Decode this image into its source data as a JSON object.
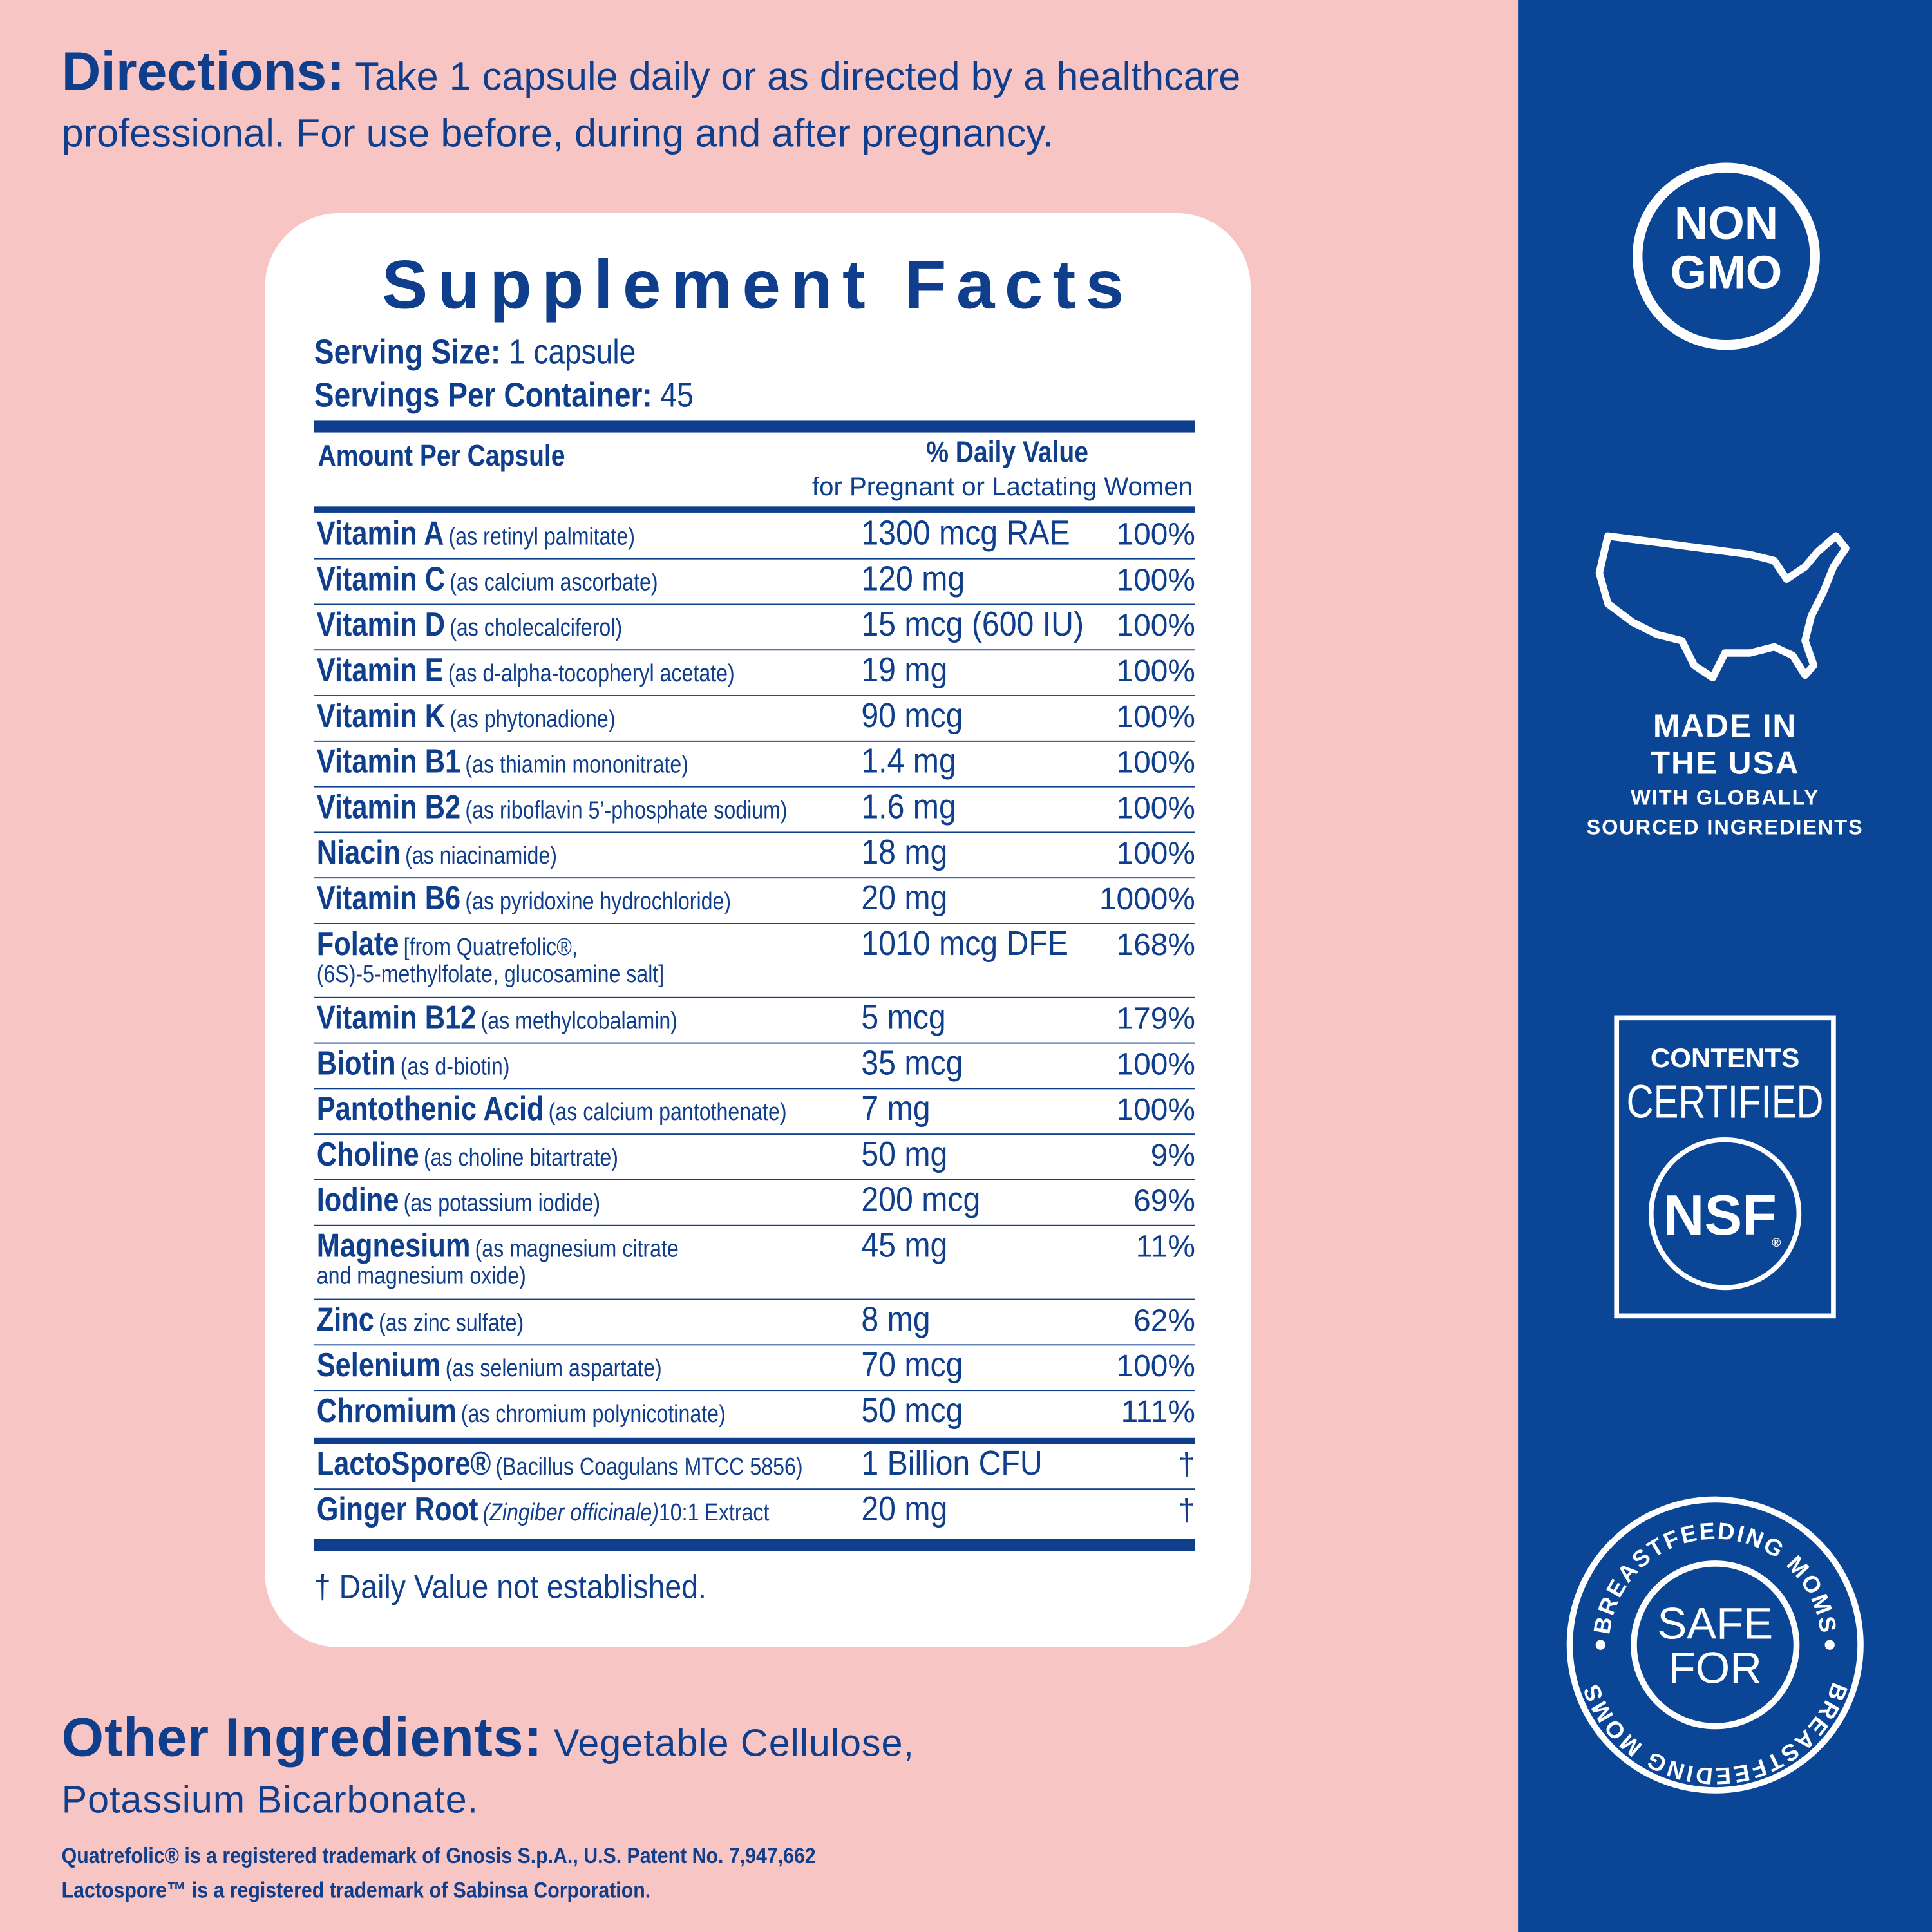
{
  "directions": {
    "label": "Directions:",
    "text_lines": [
      "Take 1 capsule daily or as directed by a healthcare",
      "professional. For use before, during and after pregnancy."
    ]
  },
  "supplement_facts": {
    "title": "Supplement Facts",
    "serving_size_label": "Serving Size:",
    "serving_size": "1 capsule",
    "servings_label": "Servings Per Container:",
    "servings": "45",
    "amount_header": "Amount Per Capsule",
    "dv_header": "% Daily Value",
    "dv_subheader": "for Pregnant or Lactating Women",
    "rows": [
      {
        "name": "Vitamin A",
        "source": "(as retinyl palmitate)",
        "amount": "1300 mcg RAE",
        "dv": "100%"
      },
      {
        "name": "Vitamin C",
        "source": "(as calcium ascorbate)",
        "amount": "120 mg",
        "dv": "100%"
      },
      {
        "name": "Vitamin D",
        "source": "(as cholecalciferol)",
        "amount": "15 mcg (600 IU)",
        "dv": "100%"
      },
      {
        "name": "Vitamin E",
        "source": "(as d-alpha-tocopheryl acetate)",
        "amount": "19 mg",
        "dv": "100%"
      },
      {
        "name": "Vitamin K",
        "source": "(as phytonadione)",
        "amount": "90 mcg",
        "dv": "100%"
      },
      {
        "name": "Vitamin B1",
        "source": "(as thiamin mononitrate)",
        "amount": "1.4 mg",
        "dv": "100%"
      },
      {
        "name": "Vitamin B2",
        "source": "(as riboflavin 5’-phosphate sodium)",
        "amount": "1.6 mg",
        "dv": "100%"
      },
      {
        "name": "Niacin",
        "source": "(as niacinamide)",
        "amount": "18 mg",
        "dv": "100%"
      },
      {
        "name": "Vitamin B6",
        "source": "(as pyridoxine hydrochloride)",
        "amount": "20 mg",
        "dv": "1000%"
      },
      {
        "name": "Folate",
        "source": [
          "[from Quatrefolic®,",
          "(6S)-5-methylfolate, glucosamine salt]"
        ],
        "amount": "1010 mcg DFE",
        "dv": "168%"
      },
      {
        "name": "Vitamin B12",
        "source": "(as methylcobalamin)",
        "amount": "5 mcg",
        "dv": "179%"
      },
      {
        "name": "Biotin",
        "source": "(as d-biotin)",
        "amount": "35 mcg",
        "dv": "100%"
      },
      {
        "name": "Pantothenic Acid",
        "source": "(as calcium pantothenate)",
        "amount": "7 mg",
        "dv": "100%"
      },
      {
        "name": "Choline",
        "source": "(as choline bitartrate)",
        "amount": "50 mg",
        "dv": "9%"
      },
      {
        "name": "Iodine",
        "source": "(as potassium iodide)",
        "amount": "200 mcg",
        "dv": "69%"
      },
      {
        "name": "Magnesium",
        "source": [
          "(as magnesium citrate",
          "and magnesium oxide)"
        ],
        "amount": "45 mg",
        "dv": "11%"
      },
      {
        "name": "Zinc",
        "source": "(as zinc sulfate)",
        "amount": "8 mg",
        "dv": "62%"
      },
      {
        "name": "Selenium",
        "source": "(as selenium aspartate)",
        "amount": "70 mcg",
        "dv": "100%"
      },
      {
        "name": "Chromium",
        "source": "(as chromium polynicotinate)",
        "amount": "50 mcg",
        "dv": "111%"
      }
    ],
    "blend_rows": [
      {
        "name": "LactoSpore®",
        "source": "(Bacillus Coagulans MTCC 5856)",
        "amount": "1 Billion CFU",
        "dv": "†"
      },
      {
        "name": "Ginger Root",
        "source_italic": "(Zingiber officinale)",
        "source": "10:1 Extract",
        "amount": "20 mg",
        "dv": "†"
      }
    ],
    "footnote": "† Daily Value not established."
  },
  "other_ingredients": {
    "label": "Other Ingredients:",
    "lines": [
      "Vegetable Cellulose,",
      "Potassium Bicarbonate."
    ]
  },
  "trademarks": [
    "Quatrefolic® is a registered trademark of Gnosis S.p.A., U.S. Patent No. 7,947,662",
    "Lactospore™ is a registered trademark of Sabinsa Corporation."
  ],
  "badges": {
    "non_gmo": [
      "NON",
      "GMO"
    ],
    "made_in": [
      "MADE IN",
      "THE USA"
    ],
    "made_in_sub": [
      "WITH GLOBALLY",
      "SOURCED INGREDIENTS"
    ],
    "nsf": {
      "top": "CONTENTS",
      "middle": "CERTIFIED",
      "mark": "NSF",
      "registered": "®"
    },
    "safe": {
      "ring": "BREASTFEEDING MOMS",
      "center": [
        "SAFE",
        "FOR"
      ]
    }
  }
}
